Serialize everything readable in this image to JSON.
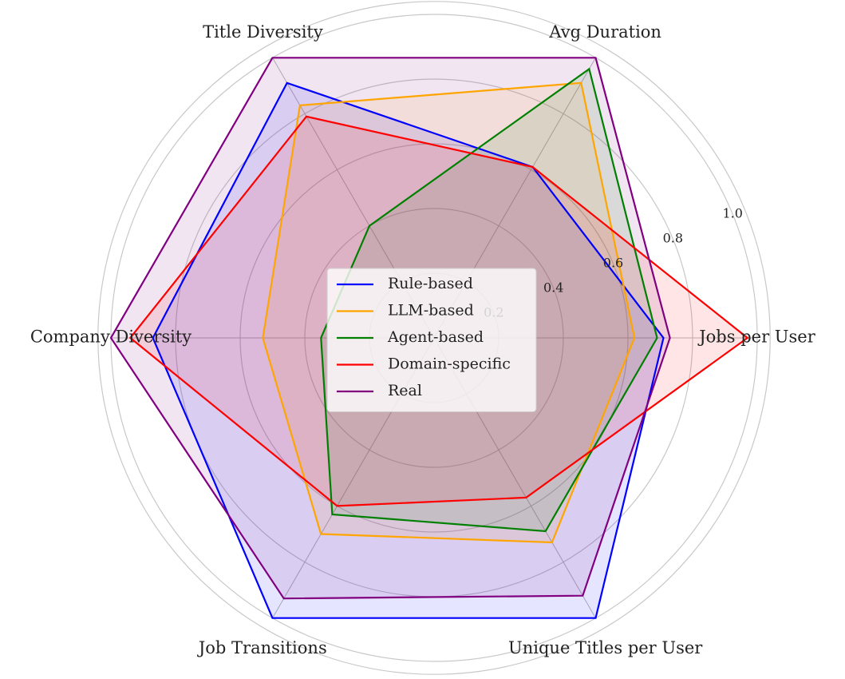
{
  "chart_data": {
    "type": "radar",
    "title": "",
    "axes": [
      "Jobs per User",
      "Avg Duration",
      "Title Diversity",
      "Company Diversity",
      "Job Transitions",
      "Unique Titles per User"
    ],
    "radial_ticks": [
      "0.2",
      "0.4",
      "0.6",
      "0.8",
      "1.0"
    ],
    "tick_values": [
      0.2,
      0.4,
      0.6,
      0.8,
      1.0
    ],
    "rlim": [
      0,
      1.0
    ],
    "grid": true,
    "legend_position": "center",
    "series": [
      {
        "name": "Rule-based",
        "color": "#0000ff",
        "values": [
          0.71,
          0.61,
          0.91,
          0.87,
          1.0,
          1.0
        ]
      },
      {
        "name": "LLM-based",
        "color": "#ffa500",
        "values": [
          0.62,
          0.91,
          0.83,
          0.53,
          0.7,
          0.73
        ]
      },
      {
        "name": "Agent-based",
        "color": "#008000",
        "values": [
          0.69,
          0.96,
          0.4,
          0.35,
          0.63,
          0.69
        ]
      },
      {
        "name": "Domain-specific",
        "color": "#ff0000",
        "values": [
          0.97,
          0.61,
          0.79,
          0.94,
          0.6,
          0.57
        ]
      },
      {
        "name": "Real",
        "color": "#800080",
        "values": [
          0.73,
          1.0,
          1.0,
          1.0,
          0.93,
          0.92
        ]
      }
    ]
  }
}
